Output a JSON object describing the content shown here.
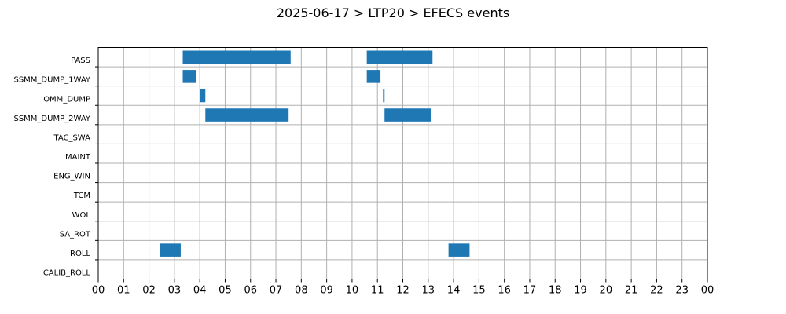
{
  "chart_data": {
    "type": "bar",
    "orientation": "horizontal-timeline",
    "title": "2025-06-17 > LTP20 > EFECS events",
    "xlabel": "",
    "ylabel": "",
    "xlim": [
      0,
      24
    ],
    "x_unit": "hour of day",
    "grid": true,
    "bar_color": "#1f77b4",
    "categories": [
      "PASS",
      "SSMM_DUMP_1WAY",
      "OMM_DUMP",
      "SSMM_DUMP_2WAY",
      "TAC_SWA",
      "MAINT",
      "ENG_WIN",
      "TCM",
      "WOL",
      "SA_ROT",
      "ROLL",
      "CALIB_ROLL"
    ],
    "x_tick_labels": [
      "00",
      "01",
      "02",
      "03",
      "04",
      "05",
      "06",
      "07",
      "08",
      "09",
      "10",
      "11",
      "12",
      "13",
      "14",
      "15",
      "16",
      "17",
      "18",
      "19",
      "20",
      "21",
      "22",
      "23",
      "00"
    ],
    "series": [
      {
        "category": "PASS",
        "intervals": [
          [
            3.33,
            7.58
          ],
          [
            10.58,
            13.17
          ]
        ]
      },
      {
        "category": "SSMM_DUMP_1WAY",
        "intervals": [
          [
            3.33,
            3.87
          ],
          [
            10.58,
            11.12
          ]
        ]
      },
      {
        "category": "OMM_DUMP",
        "intervals": [
          [
            4.0,
            4.22
          ],
          [
            11.22,
            11.28
          ]
        ]
      },
      {
        "category": "SSMM_DUMP_2WAY",
        "intervals": [
          [
            4.22,
            7.5
          ],
          [
            11.28,
            13.1
          ]
        ]
      },
      {
        "category": "TAC_SWA",
        "intervals": []
      },
      {
        "category": "MAINT",
        "intervals": []
      },
      {
        "category": "ENG_WIN",
        "intervals": []
      },
      {
        "category": "TCM",
        "intervals": []
      },
      {
        "category": "WOL",
        "intervals": []
      },
      {
        "category": "SA_ROT",
        "intervals": []
      },
      {
        "category": "ROLL",
        "intervals": [
          [
            2.42,
            3.25
          ],
          [
            13.8,
            14.63
          ]
        ]
      },
      {
        "category": "CALIB_ROLL",
        "intervals": []
      }
    ]
  }
}
